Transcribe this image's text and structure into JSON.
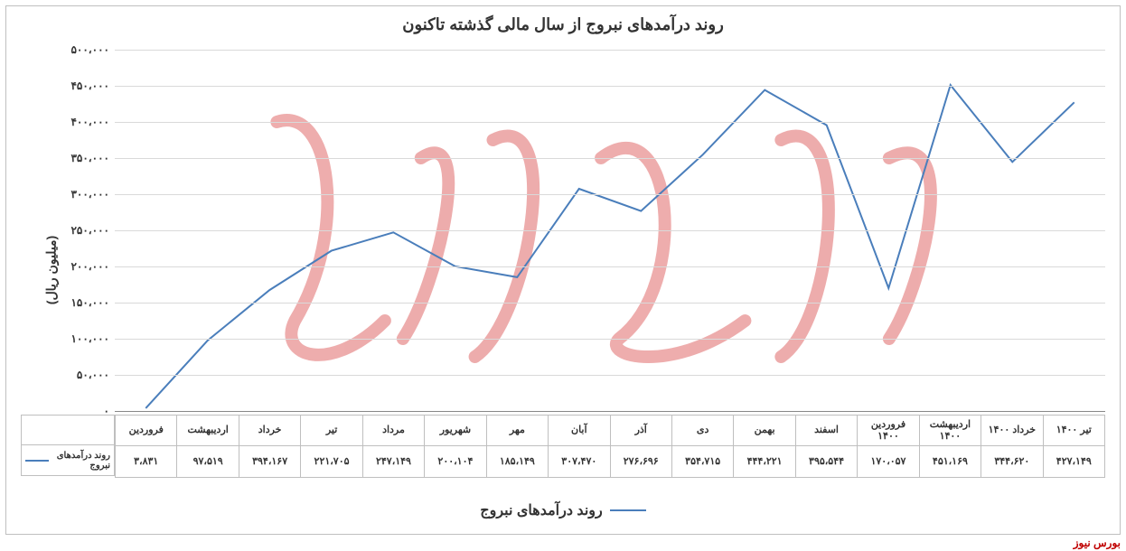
{
  "chart": {
    "type": "line",
    "title": "روند درآمدهای نبروج از سال مالی گذشته تاکنون",
    "title_fontsize": 18,
    "ylabel": "(میلیون ریال)",
    "ylabel_fontsize": 14,
    "series_name": "روند درآمدهای نبروج",
    "line_color": "#4a7ebb",
    "line_width": 2,
    "grid_color": "#d9d9d9",
    "border_color": "#bfbfbf",
    "background_color": "#ffffff",
    "text_color": "#333333",
    "ylim": [
      0,
      500000
    ],
    "ytick_step": 50000,
    "yticks": [
      "۰",
      "۵۰،۰۰۰",
      "۱۰۰،۰۰۰",
      "۱۵۰،۰۰۰",
      "۲۰۰،۰۰۰",
      "۲۵۰،۰۰۰",
      "۳۰۰،۰۰۰",
      "۳۵۰،۰۰۰",
      "۴۰۰،۰۰۰",
      "۴۵۰،۰۰۰",
      "۵۰۰،۰۰۰"
    ],
    "categories": [
      "فروردین",
      "اردیبهشت",
      "خرداد",
      "تیر",
      "مرداد",
      "شهریور",
      "مهر",
      "آبان",
      "آذر",
      "دی",
      "بهمن",
      "اسفند",
      "فروردین ۱۴۰۰",
      "اردیبهشت ۱۴۰۰",
      "خرداد ۱۴۰۰",
      "تیر ۱۴۰۰"
    ],
    "values_numeric": [
      3831,
      97519,
      167394,
      221705,
      247149,
      200104,
      185149,
      307470,
      276696,
      354715,
      444221,
      395544,
      170057,
      451169,
      344620,
      427149
    ],
    "values_label": [
      "٣،٨٣١",
      "۹۷،۵۱۹",
      "١۶۷،٣۹۴",
      "۲۲۱،۷۰۵",
      "۲۴۷،۱۴۹",
      "۲۰۰،۱۰۴",
      "۱۸۵،۱۴۹",
      "٣۰۷،۴۷۰",
      "۲۷۶،۶۹۶",
      "٣۵۴،۷۱۵",
      "۴۴۴،۲۲۱",
      "٣۹۵،۵۴۴",
      "۱۷۰،۰۵۷",
      "۴۵۱،۱۶۹",
      "٣۴۴،۶۲۰",
      "۴۲۷،۱۴۹"
    ]
  },
  "watermark": {
    "text_approx": "بورس نیوز",
    "color": "#e06a6a",
    "opacity": 0.55
  },
  "footer": {
    "brand": "بورس نیوز",
    "brand_color": "#c00000"
  }
}
